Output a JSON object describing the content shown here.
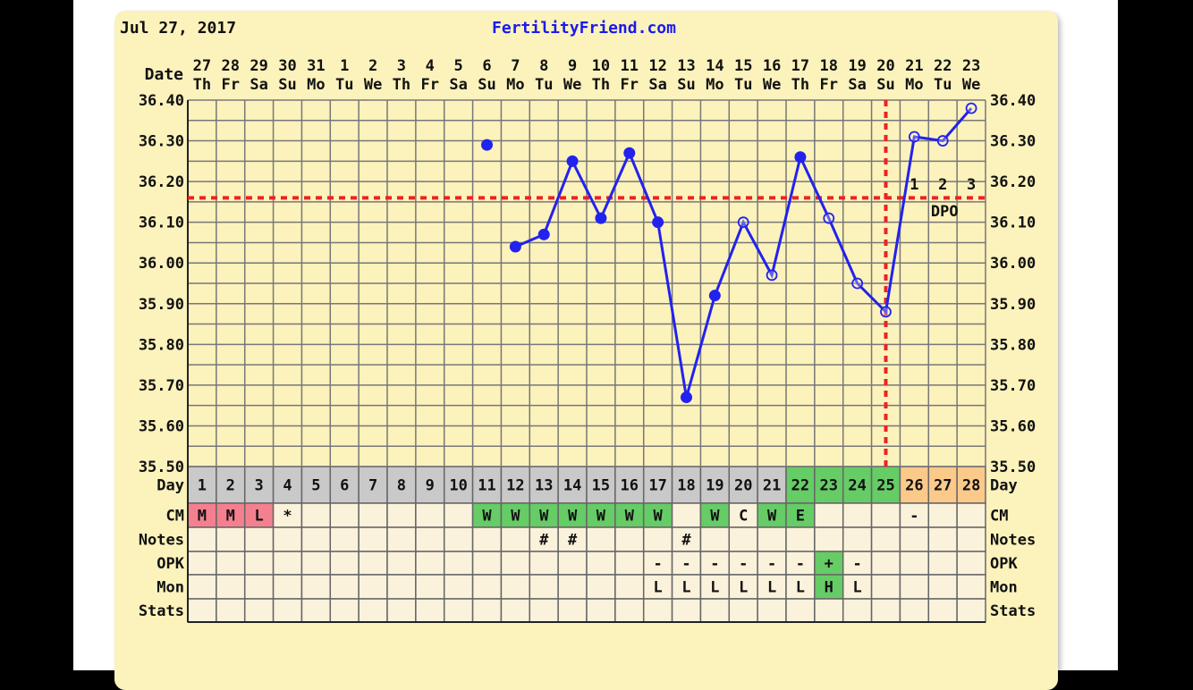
{
  "header": {
    "date": "Jul 27, 2017",
    "site": "FertilityFriend.com"
  },
  "labels": {
    "date": "Date",
    "day": "Day",
    "cm": "CM",
    "notes": "Notes",
    "opk": "OPK",
    "mon": "Mon",
    "stats": "Stats",
    "dpo": "DPO"
  },
  "colors": {
    "line": "#2222ee",
    "coverline": "#ee2222",
    "grid": "#777777",
    "cell": "#fbf2dc",
    "day_gray": "#c9c9c9",
    "green": "#66cc66",
    "orange": "#fbc98a",
    "pink": "#f4808f"
  },
  "chart_data": {
    "type": "line",
    "ylim": [
      35.5,
      36.4
    ],
    "y_ticks": [
      "36.40",
      "36.30",
      "36.20",
      "36.10",
      "36.00",
      "35.90",
      "35.80",
      "35.70",
      "35.60",
      "35.50"
    ],
    "dates": [
      "27",
      "28",
      "29",
      "30",
      "31",
      "1",
      "2",
      "3",
      "4",
      "5",
      "6",
      "7",
      "8",
      "9",
      "10",
      "11",
      "12",
      "13",
      "14",
      "15",
      "16",
      "17",
      "18",
      "19",
      "20",
      "21",
      "22",
      "23"
    ],
    "weekdays": [
      "Th",
      "Fr",
      "Sa",
      "Su",
      "Mo",
      "Tu",
      "We",
      "Th",
      "Fr",
      "Sa",
      "Su",
      "Mo",
      "Tu",
      "We",
      "Th",
      "Fr",
      "Sa",
      "Su",
      "Mo",
      "Tu",
      "We",
      "Th",
      "Fr",
      "Sa",
      "Su",
      "Mo",
      "Tu",
      "We"
    ],
    "cycle_days": [
      "1",
      "2",
      "3",
      "4",
      "5",
      "6",
      "7",
      "8",
      "9",
      "10",
      "11",
      "12",
      "13",
      "14",
      "15",
      "16",
      "17",
      "18",
      "19",
      "20",
      "21",
      "22",
      "23",
      "24",
      "25",
      "26",
      "27",
      "28"
    ],
    "day_colors": [
      "gray",
      "gray",
      "gray",
      "gray",
      "gray",
      "gray",
      "gray",
      "gray",
      "gray",
      "gray",
      "gray",
      "gray",
      "gray",
      "gray",
      "gray",
      "gray",
      "gray",
      "gray",
      "gray",
      "gray",
      "gray",
      "green",
      "green",
      "green",
      "green",
      "orange",
      "orange",
      "orange"
    ],
    "temperatures": [
      null,
      null,
      null,
      null,
      null,
      null,
      null,
      null,
      null,
      null,
      36.29,
      36.04,
      36.07,
      36.25,
      36.11,
      36.27,
      36.1,
      35.67,
      35.92,
      36.1,
      35.97,
      36.26,
      36.11,
      35.95,
      35.88,
      36.31,
      36.3,
      36.38
    ],
    "open_points": [
      false,
      false,
      false,
      false,
      false,
      false,
      false,
      false,
      false,
      false,
      false,
      false,
      false,
      false,
      false,
      false,
      false,
      false,
      false,
      true,
      true,
      false,
      true,
      true,
      true,
      true,
      true,
      true
    ],
    "connected_from_day": 12,
    "coverline": 36.16,
    "ovulation_day": 25,
    "dpo": [
      {
        "day": 26,
        "label": "1"
      },
      {
        "day": 27,
        "label": "2"
      },
      {
        "day": 28,
        "label": "3"
      }
    ]
  },
  "table": {
    "cm": {
      "values": [
        "M",
        "M",
        "L",
        "*",
        "",
        "",
        "",
        "",
        "",
        "",
        "W",
        "W",
        "W",
        "W",
        "W",
        "W",
        "W",
        "",
        "W",
        "C",
        "W",
        "E",
        "",
        "",
        "",
        "-",
        "",
        ""
      ],
      "colors": [
        "pink",
        "pink",
        "pink",
        "",
        "",
        "",
        "",
        "",
        "",
        "",
        "green",
        "green",
        "green",
        "green",
        "green",
        "green",
        "green",
        "",
        "green",
        "",
        "green",
        "green",
        "",
        "",
        "",
        "",
        "",
        ""
      ]
    },
    "notes": {
      "values": [
        "",
        "",
        "",
        "",
        "",
        "",
        "",
        "",
        "",
        "",
        "",
        "",
        "#",
        "#",
        "",
        "",
        "",
        "#",
        "",
        "",
        "",
        "",
        "",
        "",
        "",
        "",
        "",
        ""
      ],
      "colors": []
    },
    "opk": {
      "values": [
        "",
        "",
        "",
        "",
        "",
        "",
        "",
        "",
        "",
        "",
        "",
        "",
        "",
        "",
        "",
        "",
        "-",
        "-",
        "-",
        "-",
        "-",
        "-",
        "+",
        "-",
        "",
        "",
        "",
        ""
      ],
      "colors": [
        "",
        "",
        "",
        "",
        "",
        "",
        "",
        "",
        "",
        "",
        "",
        "",
        "",
        "",
        "",
        "",
        "",
        "",
        "",
        "",
        "",
        "",
        "green",
        "",
        "",
        "",
        "",
        ""
      ]
    },
    "mon": {
      "values": [
        "",
        "",
        "",
        "",
        "",
        "",
        "",
        "",
        "",
        "",
        "",
        "",
        "",
        "",
        "",
        "",
        "L",
        "L",
        "L",
        "L",
        "L",
        "L",
        "H",
        "L",
        "",
        "",
        "",
        ""
      ],
      "colors": [
        "",
        "",
        "",
        "",
        "",
        "",
        "",
        "",
        "",
        "",
        "",
        "",
        "",
        "",
        "",
        "",
        "",
        "",
        "",
        "",
        "",
        "",
        "green",
        "",
        "",
        "",
        "",
        ""
      ]
    },
    "stats": {
      "values": [
        "",
        "",
        "",
        "",
        "",
        "",
        "",
        "",
        "",
        "",
        "",
        "",
        "",
        "",
        "",
        "",
        "",
        "",
        "",
        "",
        "",
        "",
        "",
        "",
        "",
        "",
        "",
        ""
      ],
      "colors": []
    }
  }
}
